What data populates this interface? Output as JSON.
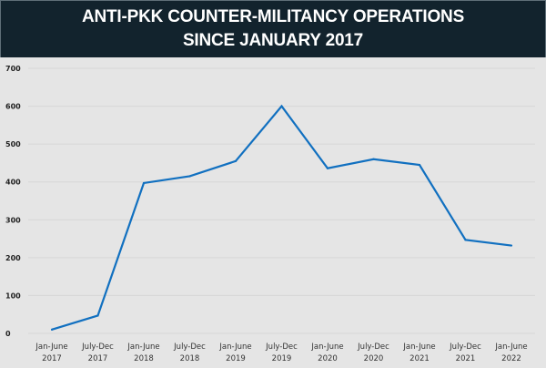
{
  "chart_data": {
    "type": "line",
    "title": "ANTI-PKK COUNTER-MILITANCY OPERATIONS SINCE JANUARY 2017",
    "xlabel": "",
    "ylabel": "",
    "ylim": [
      0,
      700
    ],
    "yticks": [
      "0",
      "100",
      "200",
      "300",
      "400",
      "500",
      "600",
      "700"
    ],
    "grid": true,
    "categories": [
      [
        "Jan-June",
        "2017"
      ],
      [
        "July-Dec",
        "2017"
      ],
      [
        "Jan-June",
        "2018"
      ],
      [
        "July-Dec",
        "2018"
      ],
      [
        "Jan-June",
        "2019"
      ],
      [
        "July-Dec",
        "2019"
      ],
      [
        "Jan-June",
        "2020"
      ],
      [
        "July-Dec",
        "2020"
      ],
      [
        "Jan-June",
        "2021"
      ],
      [
        "July-Dec",
        "2021"
      ],
      [
        "Jan-June",
        "2022"
      ]
    ],
    "series": [
      {
        "name": "Operations",
        "color": "#1170c0",
        "values": [
          10,
          47,
          397,
          415,
          455,
          600,
          436,
          460,
          445,
          247,
          232
        ]
      }
    ]
  },
  "colors": {
    "header_bg": "#12232d",
    "plot_bg": "#e5e5e5",
    "grid": "#d6d6d6",
    "line": "#1170c0"
  }
}
